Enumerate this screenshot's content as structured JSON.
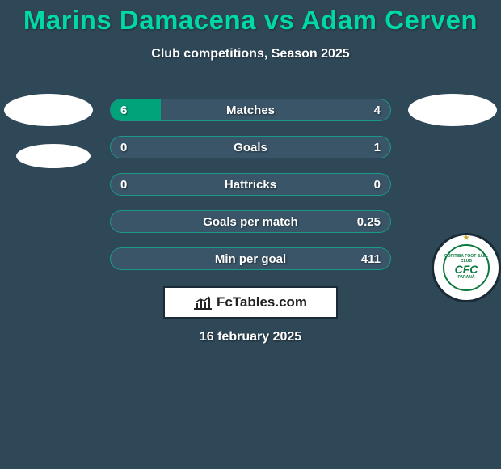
{
  "title": "Marins Damacena vs Adam Cerven",
  "subtitle": "Club competitions, Season 2025",
  "date": "16 february 2025",
  "brand": "FcTables.com",
  "colors": {
    "background": "#2f4858",
    "title": "#00d9a6",
    "bar_track": "#3a5568",
    "bar_border": "rgba(0,210,160,0.55)",
    "left_fill": "#00a37a",
    "right_fill": "#8a2740",
    "text": "#ffffff",
    "badge_green": "#0d7a3f"
  },
  "badge_right": {
    "top_text": "CORITIBA FOOT BALL CLUB",
    "center": "CFC",
    "bottom_text": "PARANÁ"
  },
  "bars": [
    {
      "label": "Matches",
      "left_val": "6",
      "right_val": "4",
      "left_pct": 18,
      "right_pct": 0
    },
    {
      "label": "Goals",
      "left_val": "0",
      "right_val": "1",
      "left_pct": 0,
      "right_pct": 0
    },
    {
      "label": "Hattricks",
      "left_val": "0",
      "right_val": "0",
      "left_pct": 0,
      "right_pct": 0
    },
    {
      "label": "Goals per match",
      "left_val": "",
      "right_val": "0.25",
      "left_pct": 0,
      "right_pct": 0
    },
    {
      "label": "Min per goal",
      "left_val": "",
      "right_val": "411",
      "left_pct": 0,
      "right_pct": 0
    }
  ]
}
